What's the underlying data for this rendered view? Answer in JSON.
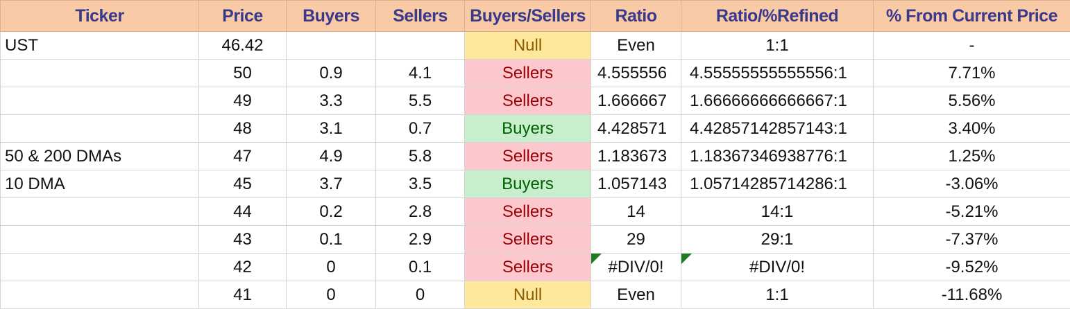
{
  "headers": [
    "Ticker",
    "Price",
    "Buyers",
    "Sellers",
    "Buyers/Sellers",
    "Ratio",
    "Ratio/%Refined",
    "% From Current Price"
  ],
  "colors": {
    "header_bg": "#f8cba6",
    "header_text": "#3a3a8c",
    "null_bg": "#fde89b",
    "sellers_bg": "#fdc7ce",
    "buyers_bg": "#c7efcd",
    "error_marker": "#1f7a1f"
  },
  "rows": [
    {
      "ticker": "UST",
      "price": "46.42",
      "buyers": "",
      "sellers": "",
      "flag": "Null",
      "ratio": "Even",
      "refined": "1:1",
      "pct": "-"
    },
    {
      "ticker": "",
      "price": "50",
      "buyers": "0.9",
      "sellers": "4.1",
      "flag": "Sellers",
      "ratio": "4.555556",
      "refined": "4.55555555555556:1",
      "pct": "7.71%"
    },
    {
      "ticker": "",
      "price": "49",
      "buyers": "3.3",
      "sellers": "5.5",
      "flag": "Sellers",
      "ratio": "1.666667",
      "refined": "1.66666666666667:1",
      "pct": "5.56%"
    },
    {
      "ticker": "",
      "price": "48",
      "buyers": "3.1",
      "sellers": "0.7",
      "flag": "Buyers",
      "ratio": "4.428571",
      "refined": "4.42857142857143:1",
      "pct": "3.40%"
    },
    {
      "ticker": "50 & 200 DMAs",
      "price": "47",
      "buyers": "4.9",
      "sellers": "5.8",
      "flag": "Sellers",
      "ratio": "1.183673",
      "refined": "1.18367346938776:1",
      "pct": "1.25%"
    },
    {
      "ticker": "10 DMA",
      "price": "45",
      "buyers": "3.7",
      "sellers": "3.5",
      "flag": "Buyers",
      "ratio": "1.057143",
      "refined": "1.05714285714286:1",
      "pct": "-3.06%"
    },
    {
      "ticker": "",
      "price": "44",
      "buyers": "0.2",
      "sellers": "2.8",
      "flag": "Sellers",
      "ratio": "14",
      "refined": "14:1",
      "pct": "-5.21%"
    },
    {
      "ticker": "",
      "price": "43",
      "buyers": "0.1",
      "sellers": "2.9",
      "flag": "Sellers",
      "ratio": "29",
      "refined": "29:1",
      "pct": "-7.37%"
    },
    {
      "ticker": "",
      "price": "42",
      "buyers": "0",
      "sellers": "0.1",
      "flag": "Sellers",
      "ratio": "#DIV/0!",
      "refined": "#DIV/0!",
      "pct": "-9.52%"
    },
    {
      "ticker": "",
      "price": "41",
      "buyers": "0",
      "sellers": "0",
      "flag": "Null",
      "ratio": "Even",
      "refined": "1:1",
      "pct": "-11.68%"
    }
  ]
}
